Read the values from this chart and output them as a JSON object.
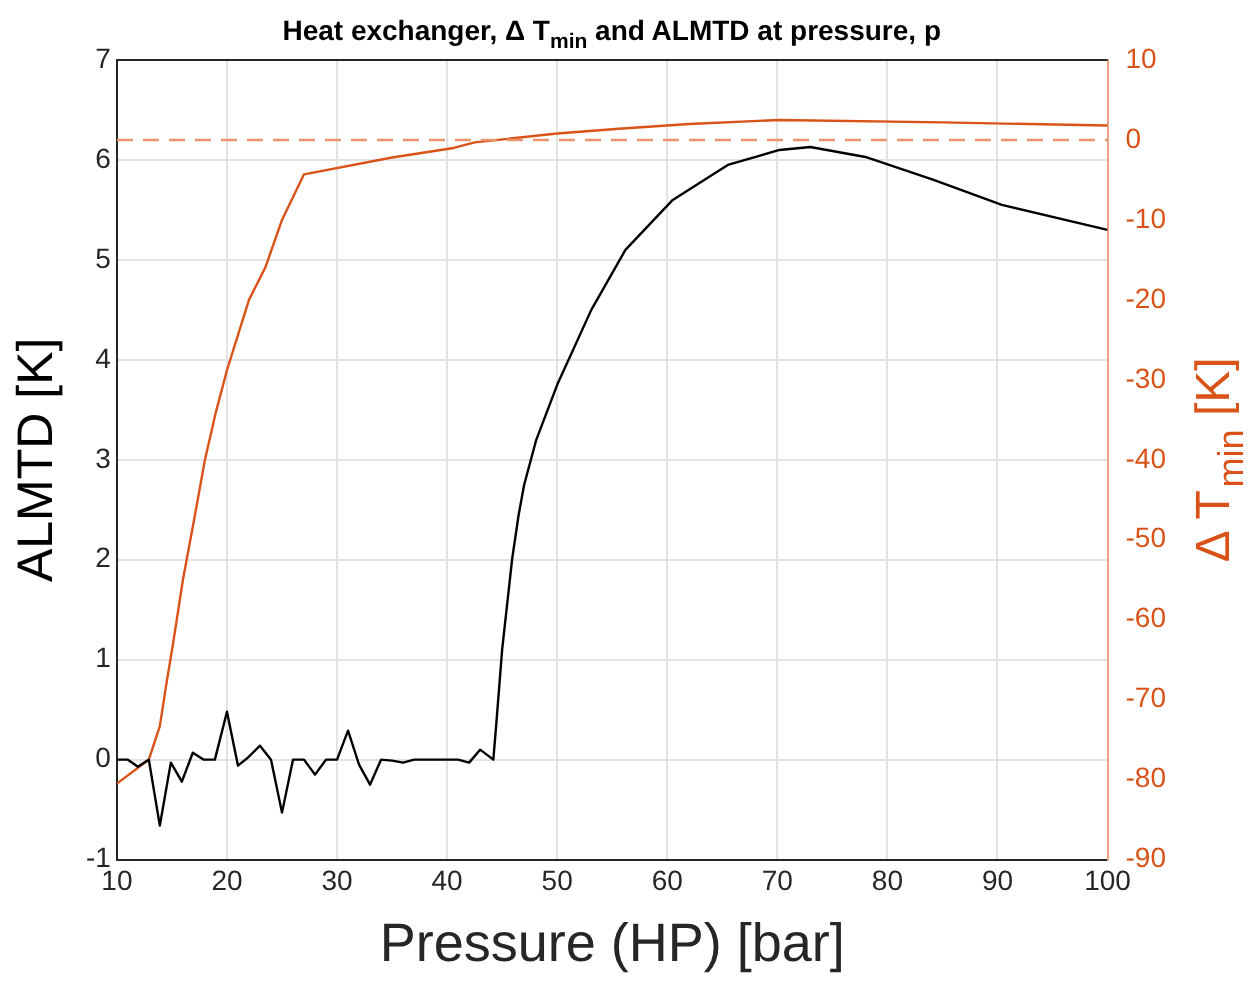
{
  "chart_data": {
    "type": "line",
    "title": "Heat exchanger, Δ T$_{min}$ and ALMTD at pressure, p",
    "xlabel": "Pressure (HP) [bar]",
    "ylabel": "ALMTD [K]",
    "y2label": "Δ T$_{min}$ [K]",
    "xlim": [
      10,
      100
    ],
    "xticks": [
      10,
      20,
      30,
      40,
      50,
      60,
      70,
      80,
      90,
      100
    ],
    "ylim": [
      -1,
      7
    ],
    "yticks": [
      -1,
      0,
      1,
      2,
      3,
      4,
      5,
      6,
      7
    ],
    "y2lim": [
      -90,
      10
    ],
    "y2ticks": [
      -90,
      -80,
      -70,
      -60,
      -50,
      -40,
      -30,
      -20,
      -10,
      0,
      10
    ],
    "grid": true,
    "legend": false,
    "marker": "none",
    "line_style": "solid",
    "series": [
      {
        "color": "#000000",
        "x": [
          10,
          11,
          11.9,
          12.9,
          13.9,
          14.9,
          15.9,
          16.9,
          17.9,
          18.9,
          20,
          21,
          21.9,
          23,
          24,
          25,
          26,
          27,
          28,
          29,
          30,
          31,
          32,
          33,
          34,
          35,
          36,
          37,
          41,
          42,
          43,
          44.2,
          44.5,
          45,
          45.9,
          46.5,
          47,
          48.1,
          50,
          53.1,
          56.2,
          60.5,
          65.5,
          70.2,
          73,
          78,
          84.2,
          90.4,
          100
        ],
        "values": [
          0,
          0,
          -0.07,
          0,
          -0.66,
          -0.03,
          -0.22,
          0.07,
          0,
          0,
          0.48,
          -0.06,
          0.02,
          0.14,
          0,
          -0.53,
          0,
          0,
          -0.15,
          0,
          0,
          0.29,
          -0.05,
          -0.25,
          0,
          -0.01,
          -0.03,
          0,
          0,
          -0.03,
          0.1,
          0,
          0.4,
          1.1,
          2.0,
          2.45,
          2.75,
          3.2,
          3.75,
          4.5,
          5.1,
          5.6,
          5.95,
          6.1,
          6.13,
          6.03,
          5.8,
          5.55,
          5.3
        ]
      },
      {
        "color": "#d95319",
        "axis": "y2",
        "x": [
          10,
          12.9,
          13.9,
          14.5,
          15.1,
          16,
          17,
          18,
          19,
          20,
          22,
          23.5,
          25,
          27,
          35,
          40.6,
          42.5,
          50,
          55.6,
          62,
          70.2,
          85,
          100
        ],
        "values": [
          -80.5,
          -77.5,
          -73.3,
          -68,
          -63,
          -55,
          -47.6,
          -40,
          -34,
          -28.8,
          -20,
          -15.9,
          -10,
          -4.3,
          -2.2,
          -1,
          -0.3,
          0.8,
          1.4,
          2,
          2.5,
          2.2,
          1.8
        ]
      }
    ],
    "ref_lines": [
      {
        "axis": "y2",
        "value": 0,
        "color": "#e8956e",
        "line_style": "dashed"
      }
    ]
  }
}
